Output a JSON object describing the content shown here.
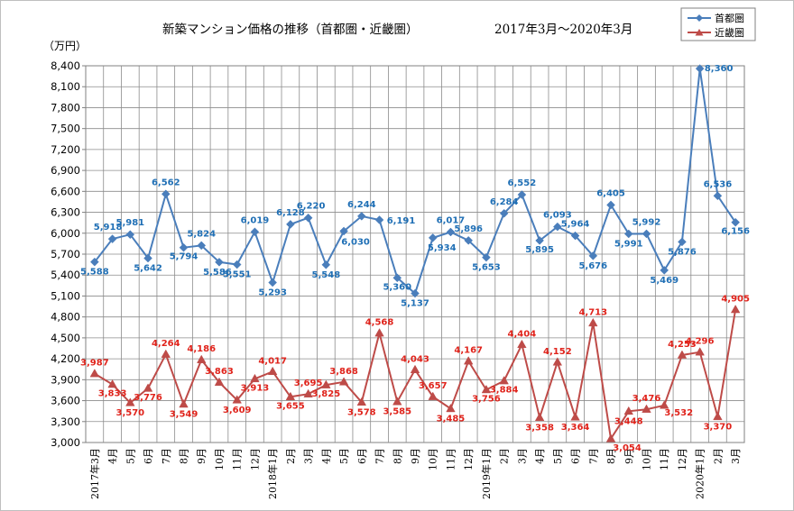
{
  "chart_data": {
    "type": "line",
    "title": "新築マンション価格の推移（首都圏・近畿圏）",
    "subtitle": "2017年3月～2020年3月",
    "ylabel": "（万円）",
    "ylim": [
      3000,
      8400
    ],
    "ystep": 300,
    "y_ticks": [
      "3,000",
      "3,300",
      "3,600",
      "3,900",
      "4,200",
      "4,500",
      "4,800",
      "5,100",
      "5,400",
      "5,700",
      "6,000",
      "6,300",
      "6,600",
      "6,900",
      "7,200",
      "7,500",
      "7,800",
      "8,100",
      "8,400"
    ],
    "categories": [
      "2017年3月",
      "4月",
      "5月",
      "6月",
      "7月",
      "8月",
      "9月",
      "10月",
      "11月",
      "12月",
      "2018年1月",
      "2月",
      "3月",
      "4月",
      "5月",
      "6月",
      "7月",
      "8月",
      "9月",
      "10月",
      "11月",
      "12月",
      "2019年1月",
      "2月",
      "3月",
      "4月",
      "5月",
      "6月",
      "7月",
      "8月",
      "9月",
      "10月",
      "11月",
      "12月",
      "2020年1月",
      "2月",
      "3月"
    ],
    "legend_position": "top-right",
    "grid": true,
    "series": [
      {
        "name": "首都圏",
        "color": "#4a7ebb",
        "label_color": "#1f6fb5",
        "marker": "diamond",
        "values": [
          5588,
          5918,
          5981,
          5642,
          6562,
          5794,
          5824,
          5586,
          5551,
          6019,
          5293,
          6128,
          6220,
          5548,
          6030,
          6244,
          6191,
          5360,
          5137,
          5934,
          6017,
          5896,
          5653,
          6284,
          6552,
          5895,
          6093,
          5964,
          5676,
          6405,
          5991,
          5992,
          5469,
          5876,
          8360,
          6536,
          6156
        ],
        "labels": [
          "5,588",
          "5,918",
          "5,981",
          "5,642",
          "6,562",
          "5,794",
          "5,824",
          "5,586",
          "5,551",
          "6,019",
          "5,293",
          "6,128",
          "6,220",
          "5,548",
          "6,030",
          "6,244",
          "6,191",
          "5,360",
          "5,137",
          "5,934",
          "6,017",
          "5,896",
          "5,653",
          "6,284",
          "6,552",
          "5,895",
          "6,093",
          "5,964",
          "5,676",
          "6,405",
          "5,991",
          "5,992",
          "5,469",
          "5,876",
          "8,360",
          "6,536",
          "6,156"
        ]
      },
      {
        "name": "近畿圏",
        "color": "#be4b48",
        "label_color": "#e0231b",
        "marker": "triangle",
        "values": [
          3987,
          3833,
          3570,
          3776,
          4264,
          3549,
          4186,
          3863,
          3609,
          3913,
          4017,
          3655,
          3695,
          3825,
          3868,
          3578,
          4568,
          3585,
          4043,
          3657,
          3485,
          4167,
          3756,
          3884,
          4404,
          3358,
          4152,
          3364,
          4713,
          3054,
          3448,
          3476,
          3532,
          4253,
          4296,
          3370,
          4905
        ],
        "labels": [
          "3,987",
          "3,833",
          "3,570",
          "3,776",
          "4,264",
          "3,549",
          "4,186",
          "3,863",
          "3,609",
          "3,913",
          "4,017",
          "3,655",
          "3,695",
          "3,825",
          "3,868",
          "3,578",
          "4,568",
          "3,585",
          "4,043",
          "3,657",
          "3,485",
          "4,167",
          "3,756",
          "3,884",
          "4,404",
          "3,358",
          "4,152",
          "3,364",
          "4,713",
          "3,054",
          "3,448",
          "3,476",
          "3,532",
          "4,253",
          "4,296",
          "3,370",
          "4,905"
        ]
      }
    ]
  }
}
